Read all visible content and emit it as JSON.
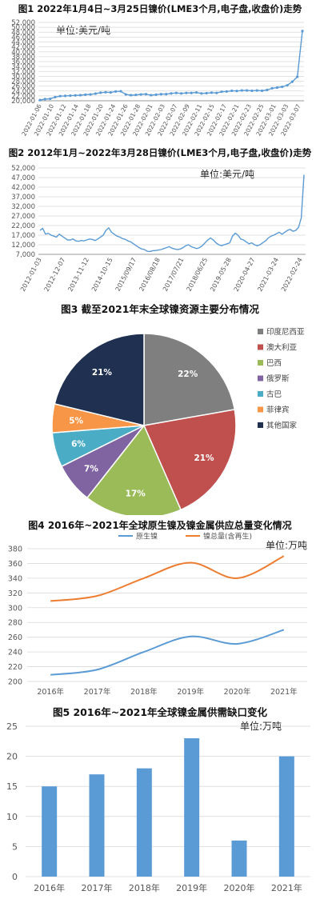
{
  "figures": {
    "fig1": {
      "title": "图1 2022年1月4日~3月25日镍价(LME3个月,电子盘,收盘价)走势",
      "unit": "单位:美元/吨"
    },
    "fig2": {
      "title": "图2 2012年1月~2022年3月28日镍价(LME3个月,电子盘,收盘价)走势",
      "unit": "单位:美元/吨"
    },
    "fig3": {
      "title": "图3 截至2021年末全球镍资源主要分布情况"
    },
    "fig4": {
      "title": "图4 2016年~2021年全球原生镍及镍金属供应总量变化情况",
      "unit": "单位:万吨"
    },
    "fig5": {
      "title": "图5 2016年~2021年全球镍金属供需缺口变化",
      "unit": "单位:万吨"
    }
  },
  "chart_data": [
    {
      "type": "line",
      "ylim": [
        20000,
        52000
      ],
      "yticks": [
        "20,000",
        "22,000",
        "24,000",
        "26,000",
        "28,000",
        "30,000",
        "32,000",
        "34,000",
        "36,000",
        "38,000",
        "40,000",
        "42,000",
        "44,000",
        "46,000",
        "48,000",
        "50,000",
        "52,000"
      ],
      "xticks": [
        "2022-01-06",
        "2022-01-10",
        "2022-01-12",
        "2022-01-14",
        "2022-01-18",
        "2022-01-20",
        "2022-01-24",
        "2022-01-26",
        "2022-01-28",
        "2022-02-01",
        "2022-02-03",
        "2022-02-07",
        "2022-02-09",
        "2022-02-11",
        "2022-02-15",
        "2022-02-17",
        "2022-02-21",
        "2022-02-23",
        "2022-02-25",
        "2022-03-01",
        "2022-03-03",
        "2022-03-07"
      ],
      "series": [
        {
          "values": [
            20300,
            20700,
            20800,
            21500,
            21900,
            22000,
            22100,
            22200,
            22300,
            22500,
            22600,
            22900,
            23300,
            23500,
            23400,
            23800,
            23900,
            22600,
            22300,
            22400,
            22600,
            22700,
            22300,
            22500,
            22700,
            22700,
            23000,
            23200,
            23000,
            23200,
            23200,
            23400,
            23000,
            23100,
            23300,
            23200,
            23700,
            23800,
            24100,
            24000,
            24200,
            24200,
            24100,
            24200,
            24100,
            24400,
            25100,
            25400,
            25700,
            26300,
            27800,
            29800,
            48500
          ]
        }
      ],
      "grid": true,
      "color": "#5b9bd5"
    },
    {
      "type": "line",
      "ylim": [
        7000,
        52000
      ],
      "yticks": [
        "7,000",
        "12,000",
        "17,000",
        "22,000",
        "27,000",
        "32,000",
        "37,000",
        "42,000",
        "47,000",
        "52,000"
      ],
      "xticks": [
        "2012-01-03",
        "2012-12-07",
        "2013-11-12",
        "2014-10-15",
        "2015/09/17",
        "2016/08/18",
        "2017/07/21",
        "2018/06/25",
        "2019-05-28",
        "2020-04-27",
        "2021-03-24",
        "2022-02-24"
      ],
      "series": [
        {
          "values": [
            19500,
            20500,
            17500,
            18000,
            17000,
            16500,
            16000,
            17500,
            16500,
            15500,
            14500,
            14500,
            15000,
            14000,
            13800,
            14200,
            14000,
            14500,
            15000,
            14800,
            14200,
            15000,
            16000,
            17000,
            19500,
            20800,
            18500,
            17500,
            16500,
            16000,
            15200,
            14800,
            14000,
            13500,
            12500,
            11500,
            10500,
            9800,
            9500,
            8600,
            8500,
            8900,
            9000,
            9200,
            9500,
            10000,
            10500,
            11000,
            10200,
            9800,
            9500,
            9800,
            10500,
            11500,
            12000,
            11000,
            10500,
            10000,
            10500,
            11500,
            13000,
            14500,
            15500,
            14500,
            13000,
            12000,
            11500,
            12000,
            12500,
            13000,
            16500,
            18000,
            17000,
            15000,
            14500,
            13500,
            12500,
            13000,
            12000,
            11500,
            12000,
            13000,
            14000,
            15500,
            16500,
            17000,
            17800,
            18500,
            17500,
            18500,
            19500,
            20000,
            19000,
            19500,
            21000,
            26000,
            48500
          ]
        }
      ],
      "grid": true,
      "color": "#5b9bd5"
    },
    {
      "type": "pie",
      "slices": [
        {
          "label": "印度尼西亚",
          "value": 22,
          "label_text": "22%",
          "color": "#7f7f7f"
        },
        {
          "label": "澳大利亚",
          "value": 21,
          "label_text": "21%",
          "color": "#c0504d"
        },
        {
          "label": "巴西",
          "value": 17,
          "label_text": "17%",
          "color": "#9bbb59"
        },
        {
          "label": "俄罗斯",
          "value": 7,
          "label_text": "7%",
          "color": "#8064a2"
        },
        {
          "label": "古巴",
          "value": 6,
          "label_text": "6%",
          "color": "#4bacc6"
        },
        {
          "label": "菲律宾",
          "value": 5,
          "label_text": "5%",
          "color": "#f79646"
        },
        {
          "label": "其他国家",
          "value": 21,
          "label_text": "21%",
          "color": "#1f3050"
        }
      ],
      "legend": "right"
    },
    {
      "type": "line",
      "categories": [
        "2016年",
        "2017年",
        "2018年",
        "2019年",
        "2020年",
        "2021年"
      ],
      "ylim": [
        200,
        380
      ],
      "yticks": [
        "200",
        "220",
        "240",
        "260",
        "280",
        "300",
        "320",
        "340",
        "360",
        "380"
      ],
      "series": [
        {
          "name": "原生镍",
          "values": [
            209,
            216,
            240,
            261,
            251,
            270
          ],
          "color": "#5b9bd5"
        },
        {
          "name": "镍总量(含再生)",
          "values": [
            309,
            316,
            340,
            361,
            340,
            370
          ],
          "color": "#ed7d31"
        }
      ],
      "legend": "top",
      "grid": true
    },
    {
      "type": "bar",
      "categories": [
        "2016年",
        "2017年",
        "2018年",
        "2019年",
        "2020年",
        "2021年"
      ],
      "values": [
        15,
        17,
        18,
        23,
        6,
        20
      ],
      "ylim": [
        0,
        25
      ],
      "yticks": [
        "0",
        "5",
        "10",
        "15",
        "20",
        "25"
      ],
      "grid": true,
      "color": "#5b9bd5"
    }
  ]
}
